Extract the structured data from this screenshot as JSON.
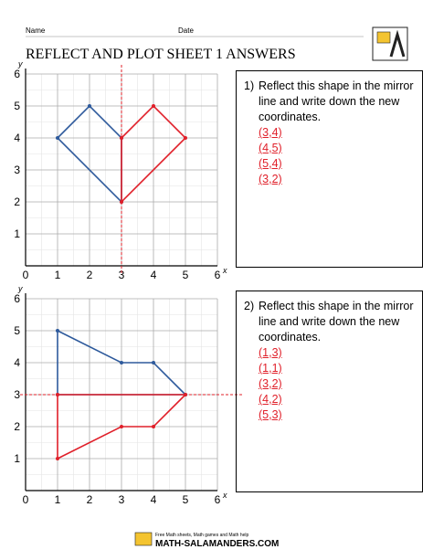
{
  "header": {
    "name_label": "Name",
    "date_label": "Date",
    "title": "REFLECT AND PLOT SHEET 1 ANSWERS"
  },
  "problems": [
    {
      "number": "1)",
      "question": "Reflect this shape in the mirror line and write down the new coordinates.",
      "x_label": "x",
      "y_label": "y",
      "xlim": [
        0,
        6
      ],
      "ylim": [
        0,
        6
      ],
      "xticks": [
        0,
        1,
        2,
        3,
        4,
        5,
        6
      ],
      "yticks": [
        1,
        2,
        3,
        4,
        5,
        6
      ],
      "mirror": {
        "axis": "x",
        "value": 3,
        "color": "#e0202a"
      },
      "original": {
        "color": "#2e5a9c",
        "points": [
          [
            1,
            4
          ],
          [
            2,
            5
          ],
          [
            3,
            4
          ],
          [
            3,
            2
          ]
        ]
      },
      "reflected": {
        "color": "#e0202a",
        "points": [
          [
            3,
            4
          ],
          [
            4,
            5
          ],
          [
            5,
            4
          ],
          [
            3,
            2
          ]
        ]
      },
      "answers": [
        "(3,4)",
        "(4,5)",
        "(5,4)",
        "(3,2)"
      ]
    },
    {
      "number": "2)",
      "question": "Reflect this shape in the mirror line and write down the new coordinates.",
      "x_label": "x",
      "y_label": "y",
      "xlim": [
        0,
        6
      ],
      "ylim": [
        0,
        6
      ],
      "xticks": [
        0,
        1,
        2,
        3,
        4,
        5,
        6
      ],
      "yticks": [
        1,
        2,
        3,
        4,
        5,
        6
      ],
      "mirror": {
        "axis": "y",
        "value": 3,
        "color": "#e0202a"
      },
      "original": {
        "color": "#2e5a9c",
        "points": [
          [
            1,
            5
          ],
          [
            3,
            4
          ],
          [
            4,
            4
          ],
          [
            5,
            3
          ],
          [
            1,
            3
          ]
        ]
      },
      "reflected": {
        "color": "#e0202a",
        "points": [
          [
            1,
            1
          ],
          [
            3,
            2
          ],
          [
            4,
            2
          ],
          [
            5,
            3
          ],
          [
            1,
            3
          ]
        ]
      },
      "answers": [
        "(1,3)",
        "(1,1)",
        "(3,2)",
        "(4,2)",
        "(5,3)"
      ]
    }
  ],
  "footer": {
    "tagline": "Free Math sheets, Math games and Math help",
    "site": "MATH-SALAMANDERS.COM"
  }
}
